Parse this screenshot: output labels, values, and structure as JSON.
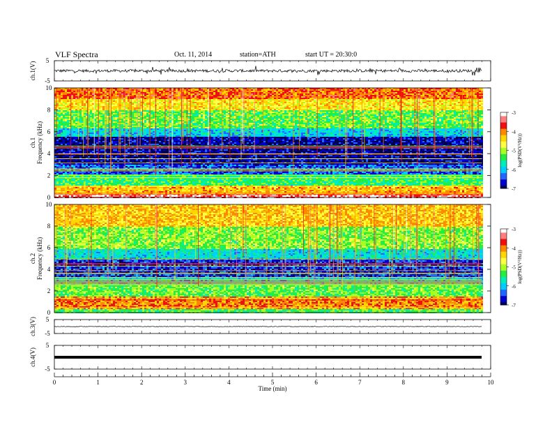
{
  "header": {
    "title": "VLF  Spectra",
    "date": "Oct. 11, 2014",
    "station": "station=ATH",
    "start": "start  UT  =   20:30:0"
  },
  "colors": {
    "scale": [
      "#ffffff",
      "#ff7f7f",
      "#ee1111",
      "#ff8800",
      "#ffd700",
      "#ffff44",
      "#aaff22",
      "#22ee44",
      "#00eebb",
      "#00ccff",
      "#2266ff",
      "#0000cc",
      "#000050"
    ],
    "background_high": "#000033",
    "trace": "#000000"
  },
  "chart_data": [
    {
      "type": "line",
      "panel": "ch1",
      "ylabel": "ch.1(V)",
      "ylim": [
        -5,
        5
      ],
      "yticks": [
        "5",
        "-5"
      ],
      "description_series": "time series roughly flat near 0 V with spiky fluctuations of about ±1 V",
      "x_range_min": [
        0,
        9.8
      ],
      "baseline": 0
    },
    {
      "type": "heatmap",
      "panel": "ch1-spectrogram",
      "ylabel_top": "ch.1",
      "ylabel": "Frequency  (kHz)",
      "ylim": [
        0,
        10
      ],
      "yticks": [
        "0",
        "2",
        "4",
        "6",
        "8",
        "10"
      ],
      "colorbar": {
        "label": "log(PSD(V²/Hz))",
        "range": [
          -7,
          -3
        ],
        "ticks": [
          "-3",
          "-4",
          "-5",
          "-6",
          "-7"
        ]
      },
      "x_range_min": [
        0,
        9.8
      ],
      "bands": [
        {
          "from": 0,
          "to": 0.4,
          "level": -3.3
        },
        {
          "from": 0.4,
          "to": 1.2,
          "level": -4.2
        },
        {
          "from": 1.2,
          "to": 2.2,
          "level": -5.4
        },
        {
          "from": 2.2,
          "to": 3.0,
          "level": -6.4
        },
        {
          "from": 3.0,
          "to": 5.6,
          "level": -6.8
        },
        {
          "from": 5.6,
          "to": 6.4,
          "level": -5.9
        },
        {
          "from": 6.4,
          "to": 8.0,
          "level": -5.2
        },
        {
          "from": 8.0,
          "to": 9.0,
          "level": -4.5
        },
        {
          "from": 9.0,
          "to": 10.0,
          "level": -3.9
        }
      ]
    },
    {
      "type": "heatmap",
      "panel": "ch2-spectrogram",
      "ylabel_top": "ch.2",
      "ylabel": "Frequency  (kHz)",
      "ylim": [
        0,
        10
      ],
      "yticks": [
        "0",
        "2",
        "4",
        "6",
        "8",
        "10"
      ],
      "colorbar": {
        "label": "log(PSD(V²/Hz))",
        "range": [
          -7,
          -3
        ],
        "ticks": [
          "-3",
          "-4",
          "-5",
          "-6",
          "-7"
        ]
      },
      "x_range_min": [
        0,
        9.8
      ],
      "bands": [
        {
          "from": 0,
          "to": 0.4,
          "level": -5.3
        },
        {
          "from": 0.4,
          "to": 1.6,
          "level": -4.0
        },
        {
          "from": 1.6,
          "to": 2.6,
          "level": -5.2
        },
        {
          "from": 2.6,
          "to": 3.4,
          "level": -5.9
        },
        {
          "from": 3.4,
          "to": 5.0,
          "level": -6.5
        },
        {
          "from": 5.0,
          "to": 6.0,
          "level": -5.8
        },
        {
          "from": 6.0,
          "to": 8.0,
          "level": -5.1
        },
        {
          "from": 8.0,
          "to": 10.0,
          "level": -4.3
        }
      ]
    },
    {
      "type": "line",
      "panel": "ch3",
      "ylabel": "ch.3(V)",
      "ylim": [
        -5,
        5
      ],
      "yticks": [
        "5",
        "-5"
      ],
      "x_range_min": [
        0,
        9.8
      ],
      "baseline": 0
    },
    {
      "type": "line",
      "panel": "ch4",
      "ylabel": "ch.4(V)",
      "ylim": [
        -5,
        5
      ],
      "yticks": [
        "5",
        "-5"
      ],
      "x_range_min": [
        0,
        9.8
      ],
      "baseline": 0
    }
  ],
  "xaxis": {
    "label": "Time  (min)",
    "range": [
      0,
      10
    ],
    "ticks": [
      "0",
      "1",
      "2",
      "3",
      "4",
      "5",
      "6",
      "7",
      "8",
      "9",
      "10"
    ]
  }
}
